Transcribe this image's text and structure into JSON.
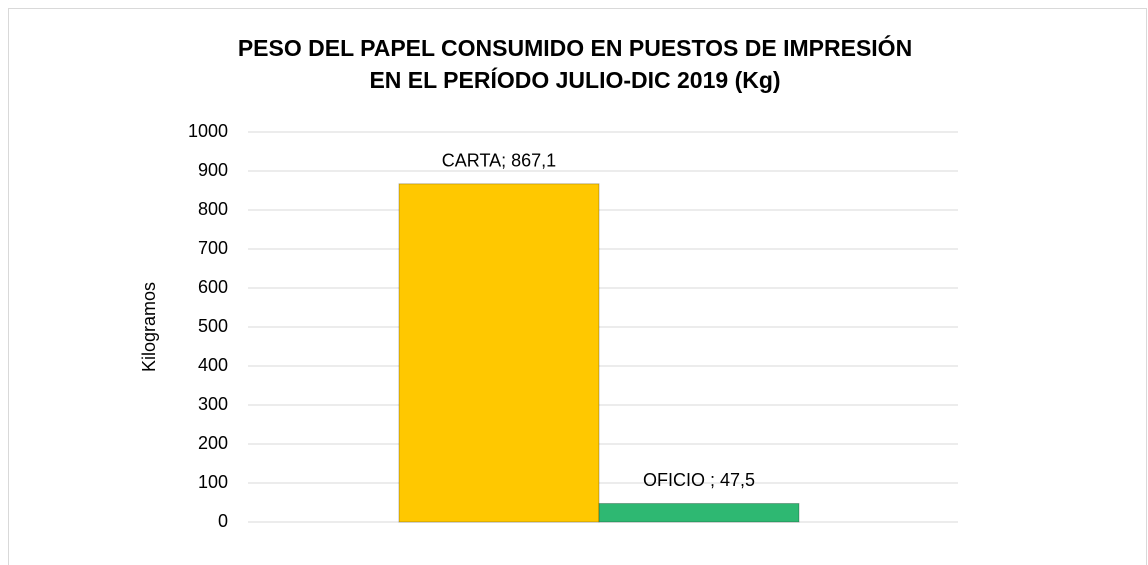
{
  "chart_data": {
    "type": "bar",
    "title": [
      "PESO DEL PAPEL CONSUMIDO EN PUESTOS DE IMPRESIÓN",
      "EN EL PERÍODO JULIO-DIC 2019 (Kg)"
    ],
    "y_label": "Kilogramos",
    "categories": [
      null
    ],
    "series": [
      {
        "color": "#ffc800",
        "values": [
          867.1
        ],
        "value_labels": [
          "CARTA; 867,1"
        ]
      },
      {
        "color": "#2eb872",
        "values": [
          47.5
        ],
        "value_labels": [
          "OFICIO ; 47,5"
        ]
      }
    ],
    "ylim": [
      0,
      1000
    ],
    "yticks": [
      0,
      100,
      200,
      300,
      400,
      500,
      600,
      700,
      800,
      900,
      1000
    ],
    "grid": true
  }
}
